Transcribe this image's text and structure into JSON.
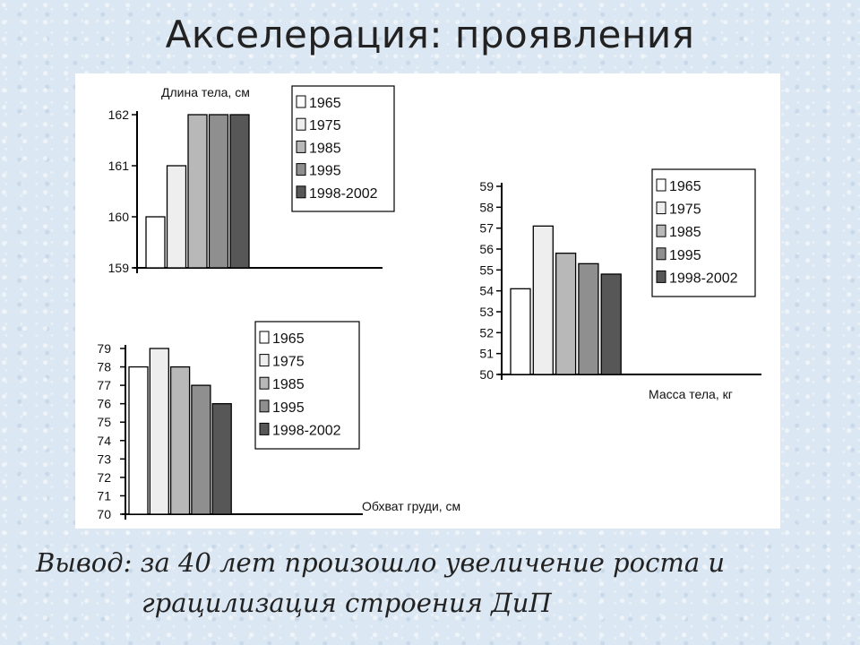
{
  "slide": {
    "title": "Акселерация: проявления",
    "conclusion_line1": "Вывод: за 40 лет произошло увеличение роста и",
    "conclusion_line2": "грацилизация строения ДиП"
  },
  "colors": {
    "slide_background": "#dbe7f2",
    "bar_1965": "#ffffff",
    "bar_1975": "#eeeeee",
    "bar_1985": "#b8b8b8",
    "bar_1995": "#8f8f8f",
    "bar_1998_2002": "#575757"
  },
  "chart_data": [
    {
      "type": "bar",
      "title": "Длина тела, см",
      "categories": [
        "1965",
        "1975",
        "1985",
        "1995",
        "1998-2002"
      ],
      "values": [
        160,
        161,
        162,
        162,
        162
      ],
      "ylim": [
        159,
        162
      ],
      "yticks": [
        159,
        160,
        161,
        162
      ],
      "legend": [
        "1965",
        "1975",
        "1985",
        "1995",
        "1998-2002"
      ],
      "legend_position": "top-right"
    },
    {
      "type": "bar",
      "title": "Масса тела, кг",
      "categories": [
        "1965",
        "1975",
        "1985",
        "1995",
        "1998-2002"
      ],
      "values": [
        54.1,
        57.1,
        55.8,
        55.3,
        54.8
      ],
      "ylim": [
        50,
        59
      ],
      "yticks": [
        50,
        51,
        52,
        53,
        54,
        55,
        56,
        57,
        58,
        59
      ],
      "legend": [
        "1965",
        "1975",
        "1985",
        "1995",
        "1998-2002"
      ],
      "legend_position": "top-right"
    },
    {
      "type": "bar",
      "title": "Обхват груди, см",
      "categories": [
        "1965",
        "1975",
        "1985",
        "1995",
        "1998-2002"
      ],
      "values": [
        78,
        79,
        78,
        77,
        76
      ],
      "ylim": [
        70,
        79
      ],
      "yticks": [
        70,
        71,
        72,
        73,
        74,
        75,
        76,
        77,
        78,
        79
      ],
      "legend": [
        "1965",
        "1975",
        "1985",
        "1995",
        "1998-2002"
      ],
      "legend_position": "top-right"
    }
  ]
}
